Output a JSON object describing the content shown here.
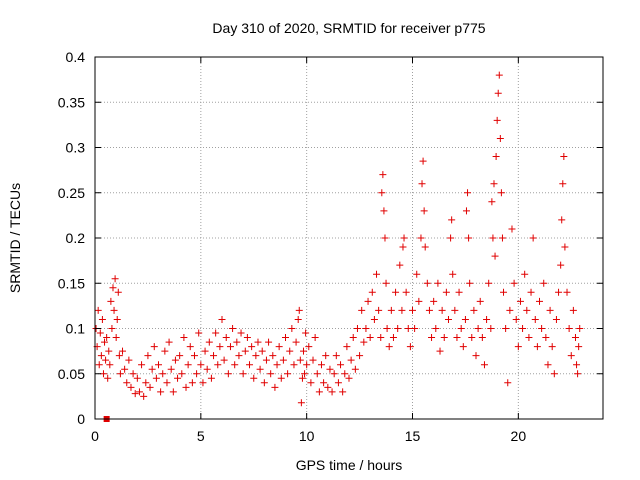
{
  "chart_data": {
    "type": "scatter",
    "title": "Day 310 of 2020, SRMTID for receiver p775",
    "xlabel": "GPS time / hours",
    "ylabel": "SRMTID / TECUs",
    "xlim": [
      0,
      24
    ],
    "ylim": [
      0,
      0.4
    ],
    "xticks": [
      0,
      5,
      10,
      15,
      20
    ],
    "xtick_labels": [
      "0",
      "5",
      "10",
      "15",
      "20"
    ],
    "yticks": [
      0,
      0.05,
      0.1,
      0.15,
      0.2,
      0.25,
      0.3,
      0.35,
      0.4
    ],
    "ytick_labels": [
      "0",
      "0.05",
      "0.1",
      "0.15",
      "0.2",
      "0.25",
      "0.3",
      "0.35",
      "0.4"
    ],
    "grid": true,
    "marker": "+",
    "marker_color": "#e00000",
    "series": [
      {
        "name": "SRMTID",
        "points": [
          [
            0.05,
            0.1
          ],
          [
            0.1,
            0.08
          ],
          [
            0.15,
            0.12
          ],
          [
            0.2,
            0.06
          ],
          [
            0.25,
            0.095
          ],
          [
            0.3,
            0.07
          ],
          [
            0.35,
            0.11
          ],
          [
            0.4,
            0.05
          ],
          [
            0.45,
            0.085
          ],
          [
            0.5,
            0.065
          ],
          [
            0.55,
            0.09
          ],
          [
            0.6,
            0.045
          ],
          [
            0.65,
            0.075
          ],
          [
            0.7,
            0.06
          ],
          [
            0.75,
            0.13
          ],
          [
            0.8,
            0.1
          ],
          [
            0.85,
            0.145
          ],
          [
            0.9,
            0.12
          ],
          [
            0.95,
            0.155
          ],
          [
            1.0,
            0.09
          ],
          [
            1.05,
            0.11
          ],
          [
            1.1,
            0.14
          ],
          [
            1.15,
            0.07
          ],
          [
            1.2,
            0.05
          ],
          [
            1.3,
            0.075
          ],
          [
            1.4,
            0.055
          ],
          [
            1.5,
            0.04
          ],
          [
            1.6,
            0.065
          ],
          [
            1.7,
            0.035
          ],
          [
            1.8,
            0.05
          ],
          [
            1.9,
            0.028
          ],
          [
            2.0,
            0.045
          ],
          [
            2.1,
            0.03
          ],
          [
            2.2,
            0.06
          ],
          [
            2.3,
            0.025
          ],
          [
            2.4,
            0.04
          ],
          [
            2.5,
            0.07
          ],
          [
            2.6,
            0.035
          ],
          [
            2.7,
            0.055
          ],
          [
            2.8,
            0.08
          ],
          [
            2.9,
            0.045
          ],
          [
            3.0,
            0.06
          ],
          [
            3.1,
            0.03
          ],
          [
            3.2,
            0.05
          ],
          [
            3.3,
            0.075
          ],
          [
            3.4,
            0.04
          ],
          [
            3.5,
            0.085
          ],
          [
            3.6,
            0.055
          ],
          [
            3.7,
            0.03
          ],
          [
            3.8,
            0.065
          ],
          [
            3.9,
            0.045
          ],
          [
            4.0,
            0.07
          ],
          [
            4.1,
            0.05
          ],
          [
            4.2,
            0.09
          ],
          [
            4.3,
            0.035
          ],
          [
            4.4,
            0.06
          ],
          [
            4.5,
            0.08
          ],
          [
            4.6,
            0.04
          ],
          [
            4.7,
            0.07
          ],
          [
            4.8,
            0.05
          ],
          [
            4.9,
            0.095
          ],
          [
            5.0,
            0.06
          ],
          [
            5.1,
            0.04
          ],
          [
            5.2,
            0.075
          ],
          [
            5.3,
            0.055
          ],
          [
            5.4,
            0.085
          ],
          [
            5.5,
            0.045
          ],
          [
            5.6,
            0.07
          ],
          [
            5.7,
            0.095
          ],
          [
            5.8,
            0.06
          ],
          [
            5.9,
            0.08
          ],
          [
            6.0,
            0.11
          ],
          [
            6.1,
            0.065
          ],
          [
            6.2,
            0.09
          ],
          [
            6.3,
            0.05
          ],
          [
            6.4,
            0.08
          ],
          [
            6.5,
            0.1
          ],
          [
            6.6,
            0.06
          ],
          [
            6.7,
            0.085
          ],
          [
            6.8,
            0.07
          ],
          [
            6.9,
            0.095
          ],
          [
            7.0,
            0.05
          ],
          [
            7.1,
            0.075
          ],
          [
            7.2,
            0.09
          ],
          [
            7.3,
            0.06
          ],
          [
            7.4,
            0.08
          ],
          [
            7.5,
            0.045
          ],
          [
            7.6,
            0.07
          ],
          [
            7.7,
            0.085
          ],
          [
            7.8,
            0.055
          ],
          [
            7.9,
            0.075
          ],
          [
            8.0,
            0.04
          ],
          [
            8.1,
            0.065
          ],
          [
            8.2,
            0.085
          ],
          [
            8.3,
            0.05
          ],
          [
            8.4,
            0.07
          ],
          [
            8.5,
            0.035
          ],
          [
            8.6,
            0.06
          ],
          [
            8.7,
            0.08
          ],
          [
            8.8,
            0.045
          ],
          [
            8.9,
            0.065
          ],
          [
            9.0,
            0.09
          ],
          [
            9.1,
            0.05
          ],
          [
            9.2,
            0.075
          ],
          [
            9.3,
            0.1
          ],
          [
            9.4,
            0.06
          ],
          [
            9.5,
            0.085
          ],
          [
            9.6,
            0.11
          ],
          [
            9.65,
            0.12
          ],
          [
            9.7,
            0.065
          ],
          [
            9.75,
            0.018
          ],
          [
            9.8,
            0.045
          ],
          [
            9.85,
            0.075
          ],
          [
            9.9,
            0.05
          ],
          [
            9.95,
            0.095
          ],
          [
            10.0,
            0.06
          ],
          [
            10.1,
            0.08
          ],
          [
            10.2,
            0.04
          ],
          [
            10.3,
            0.065
          ],
          [
            10.4,
            0.09
          ],
          [
            10.5,
            0.05
          ],
          [
            10.6,
            0.03
          ],
          [
            10.7,
            0.06
          ],
          [
            10.8,
            0.04
          ],
          [
            10.9,
            0.07
          ],
          [
            11.0,
            0.035
          ],
          [
            11.1,
            0.055
          ],
          [
            11.2,
            0.03
          ],
          [
            11.3,
            0.05
          ],
          [
            11.4,
            0.07
          ],
          [
            11.5,
            0.04
          ],
          [
            11.6,
            0.06
          ],
          [
            11.7,
            0.03
          ],
          [
            11.8,
            0.05
          ],
          [
            11.9,
            0.08
          ],
          [
            12.0,
            0.045
          ],
          [
            12.1,
            0.065
          ],
          [
            12.2,
            0.09
          ],
          [
            12.3,
            0.055
          ],
          [
            12.4,
            0.1
          ],
          [
            12.5,
            0.07
          ],
          [
            12.6,
            0.12
          ],
          [
            12.7,
            0.085
          ],
          [
            12.8,
            0.1
          ],
          [
            12.9,
            0.13
          ],
          [
            13.0,
            0.09
          ],
          [
            13.1,
            0.14
          ],
          [
            13.2,
            0.11
          ],
          [
            13.3,
            0.16
          ],
          [
            13.4,
            0.12
          ],
          [
            13.5,
            0.09
          ],
          [
            13.55,
            0.25
          ],
          [
            13.6,
            0.27
          ],
          [
            13.65,
            0.23
          ],
          [
            13.7,
            0.2
          ],
          [
            13.75,
            0.15
          ],
          [
            13.8,
            0.1
          ],
          [
            13.9,
            0.08
          ],
          [
            14.0,
            0.12
          ],
          [
            14.1,
            0.09
          ],
          [
            14.2,
            0.14
          ],
          [
            14.3,
            0.1
          ],
          [
            14.4,
            0.17
          ],
          [
            14.5,
            0.12
          ],
          [
            14.55,
            0.19
          ],
          [
            14.6,
            0.2
          ],
          [
            14.7,
            0.14
          ],
          [
            14.8,
            0.1
          ],
          [
            14.9,
            0.08
          ],
          [
            15.0,
            0.12
          ],
          [
            15.1,
            0.1
          ],
          [
            15.2,
            0.16
          ],
          [
            15.3,
            0.13
          ],
          [
            15.4,
            0.2
          ],
          [
            15.45,
            0.26
          ],
          [
            15.5,
            0.285
          ],
          [
            15.55,
            0.23
          ],
          [
            15.6,
            0.19
          ],
          [
            15.7,
            0.15
          ],
          [
            15.8,
            0.12
          ],
          [
            15.9,
            0.09
          ],
          [
            16.0,
            0.13
          ],
          [
            16.1,
            0.1
          ],
          [
            16.2,
            0.15
          ],
          [
            16.3,
            0.075
          ],
          [
            16.4,
            0.12
          ],
          [
            16.5,
            0.09
          ],
          [
            16.6,
            0.14
          ],
          [
            16.7,
            0.11
          ],
          [
            16.8,
            0.2
          ],
          [
            16.85,
            0.22
          ],
          [
            16.9,
            0.16
          ],
          [
            17.0,
            0.12
          ],
          [
            17.1,
            0.09
          ],
          [
            17.2,
            0.14
          ],
          [
            17.3,
            0.1
          ],
          [
            17.4,
            0.08
          ],
          [
            17.5,
            0.11
          ],
          [
            17.55,
            0.23
          ],
          [
            17.6,
            0.25
          ],
          [
            17.65,
            0.2
          ],
          [
            17.7,
            0.15
          ],
          [
            17.8,
            0.09
          ],
          [
            17.9,
            0.12
          ],
          [
            18.0,
            0.07
          ],
          [
            18.1,
            0.1
          ],
          [
            18.2,
            0.13
          ],
          [
            18.3,
            0.09
          ],
          [
            18.4,
            0.06
          ],
          [
            18.5,
            0.11
          ],
          [
            18.6,
            0.15
          ],
          [
            18.7,
            0.1
          ],
          [
            18.75,
            0.24
          ],
          [
            18.8,
            0.2
          ],
          [
            18.85,
            0.26
          ],
          [
            18.9,
            0.18
          ],
          [
            18.95,
            0.29
          ],
          [
            19.0,
            0.33
          ],
          [
            19.05,
            0.36
          ],
          [
            19.1,
            0.38
          ],
          [
            19.15,
            0.31
          ],
          [
            19.2,
            0.25
          ],
          [
            19.25,
            0.2
          ],
          [
            19.3,
            0.14
          ],
          [
            19.4,
            0.1
          ],
          [
            19.5,
            0.04
          ],
          [
            19.6,
            0.12
          ],
          [
            19.7,
            0.21
          ],
          [
            19.8,
            0.15
          ],
          [
            19.9,
            0.11
          ],
          [
            20.0,
            0.08
          ],
          [
            20.1,
            0.13
          ],
          [
            20.2,
            0.1
          ],
          [
            20.3,
            0.16
          ],
          [
            20.4,
            0.12
          ],
          [
            20.5,
            0.09
          ],
          [
            20.6,
            0.14
          ],
          [
            20.7,
            0.2
          ],
          [
            20.8,
            0.11
          ],
          [
            20.9,
            0.08
          ],
          [
            21.0,
            0.13
          ],
          [
            21.1,
            0.1
          ],
          [
            21.2,
            0.15
          ],
          [
            21.3,
            0.09
          ],
          [
            21.4,
            0.06
          ],
          [
            21.5,
            0.12
          ],
          [
            21.6,
            0.08
          ],
          [
            21.7,
            0.05
          ],
          [
            21.8,
            0.11
          ],
          [
            21.9,
            0.14
          ],
          [
            22.0,
            0.17
          ],
          [
            22.05,
            0.22
          ],
          [
            22.1,
            0.26
          ],
          [
            22.15,
            0.29
          ],
          [
            22.2,
            0.19
          ],
          [
            22.3,
            0.14
          ],
          [
            22.4,
            0.1
          ],
          [
            22.5,
            0.07
          ],
          [
            22.6,
            0.12
          ],
          [
            22.7,
            0.09
          ],
          [
            22.75,
            0.06
          ],
          [
            22.8,
            0.05
          ],
          [
            22.85,
            0.08
          ],
          [
            22.9,
            0.1
          ]
        ]
      }
    ],
    "outlier_marker": {
      "x": 0.55,
      "y": 0.0,
      "shape": "filled-square"
    }
  }
}
